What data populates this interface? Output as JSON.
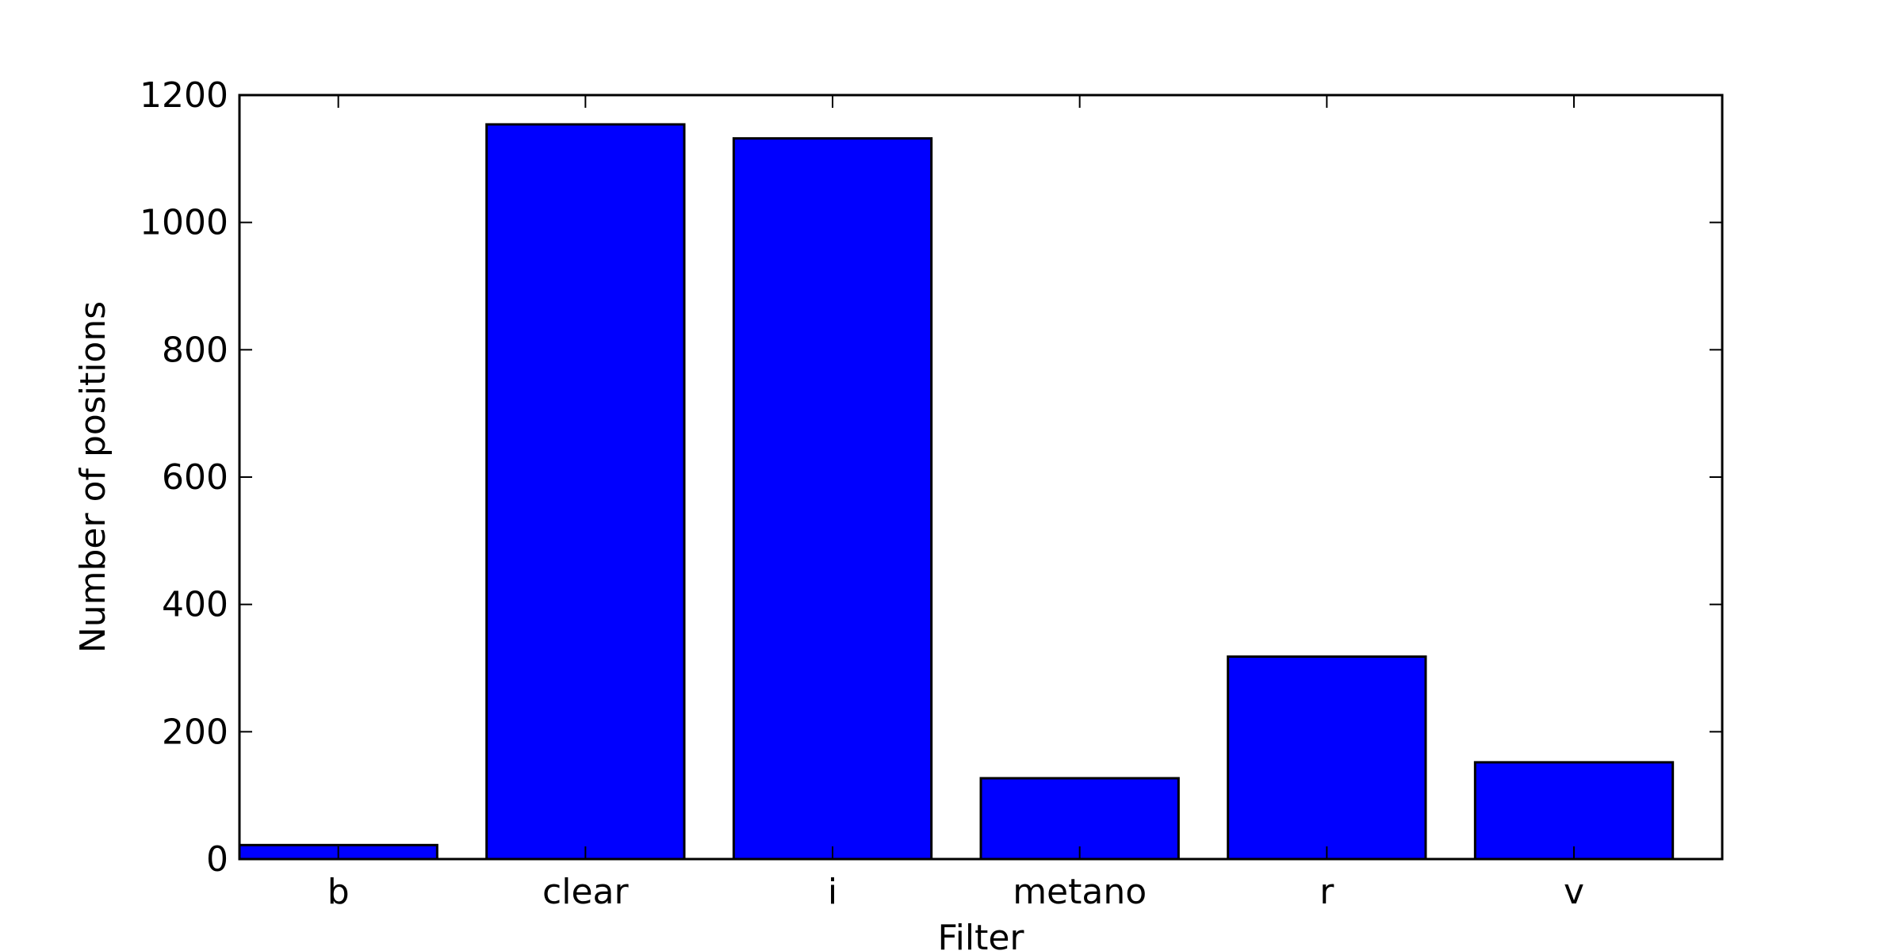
{
  "chart_data": {
    "type": "bar",
    "categories": [
      "b",
      "clear",
      "i",
      "metano",
      "r",
      "v"
    ],
    "values": [
      22,
      1154,
      1132,
      127,
      318,
      152
    ],
    "xlabel": "Filter",
    "ylabel": "Number of positions",
    "ylim": [
      0,
      1200
    ],
    "yticks": [
      0,
      200,
      400,
      600,
      800,
      1000,
      1200
    ],
    "bar_color": "#0000ff",
    "edge_color": "#000000",
    "grid": false
  }
}
